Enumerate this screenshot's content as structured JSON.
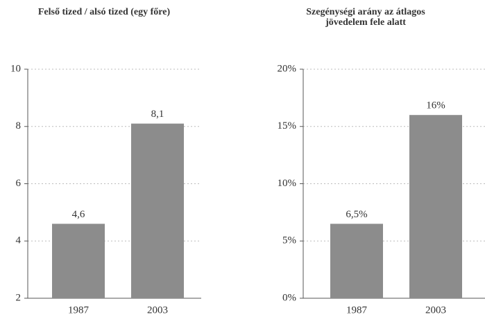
{
  "chart_data": [
    {
      "type": "bar",
      "title": "Felső tized / alsó tized (egy főre)",
      "categories": [
        "1987",
        "2003"
      ],
      "values": [
        4.6,
        8.1
      ],
      "value_labels": [
        "4,6",
        "8,1"
      ],
      "color": "#8c8c8c",
      "ylim": [
        2,
        10
      ],
      "yticks": [
        2,
        4,
        6,
        8,
        10
      ],
      "grid": true
    },
    {
      "type": "bar",
      "title": "Szegénységi arány az átlagos\njövedelem fele alatt",
      "categories": [
        "1987",
        "2003"
      ],
      "values": [
        6.5,
        16
      ],
      "value_labels": [
        "6,5%",
        "16%"
      ],
      "color": "#8c8c8c",
      "ylim": [
        0,
        20
      ],
      "yticks": [
        {
          "value": 0,
          "label": "0%"
        },
        {
          "value": 5,
          "label": "5%"
        },
        {
          "value": 10,
          "label": "10%"
        },
        {
          "value": 15,
          "label": "15%"
        },
        {
          "value": 20,
          "label": "20%"
        }
      ],
      "grid": true
    }
  ]
}
